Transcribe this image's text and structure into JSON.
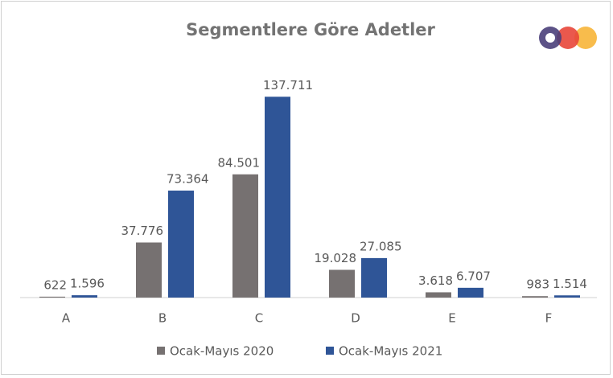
{
  "chart_data": {
    "type": "bar",
    "title": "Segmentlere Göre Adetler",
    "categories": [
      "A",
      "B",
      "C",
      "D",
      "E",
      "F"
    ],
    "series": [
      {
        "name": "Ocak-Mayıs 2020",
        "color": "#767171",
        "values": [
          622,
          37776,
          84501,
          19028,
          3618,
          983
        ],
        "value_labels": [
          "622",
          "37.776",
          "84.501",
          "19.028",
          "3.618",
          "983"
        ]
      },
      {
        "name": "Ocak-Mayıs 2021",
        "color": "#2f5597",
        "values": [
          1596,
          73364,
          137711,
          27085,
          6707,
          1514
        ],
        "value_labels": [
          "1.596",
          "73.364",
          "137.711",
          "27.085",
          "6.707",
          "1.514"
        ]
      }
    ],
    "ylim": [
      0,
      150000
    ],
    "legend": "bottom"
  }
}
